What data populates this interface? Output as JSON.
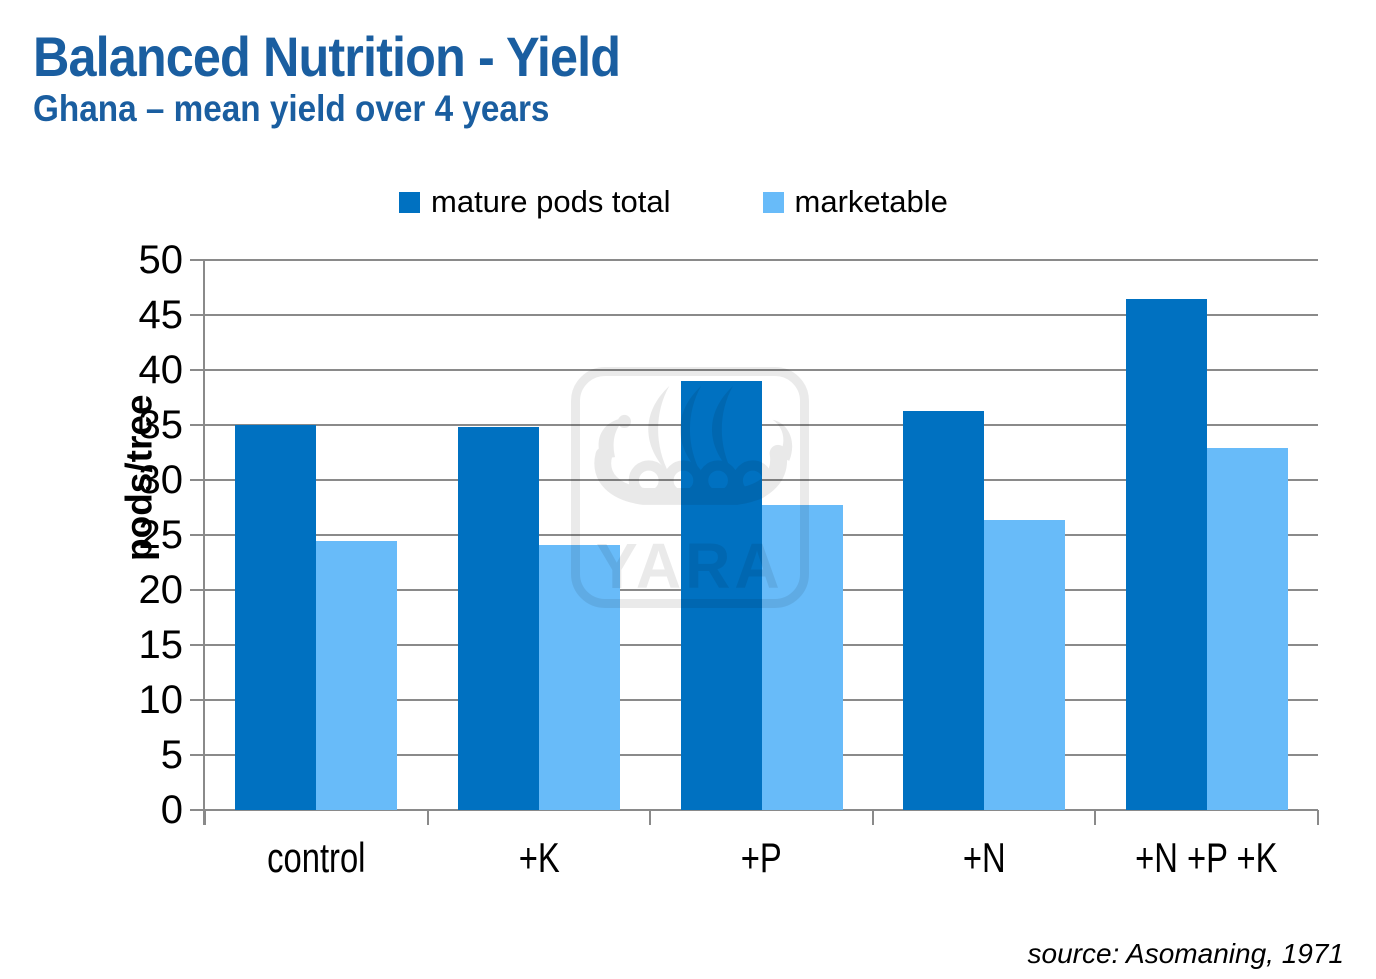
{
  "page": {
    "title": "Balanced Nutrition - Yield",
    "subtitle": "Ghana – mean yield over 4 years",
    "source": "source: Asomaning, 1971"
  },
  "colors": {
    "title_blue": "#1A5EA0",
    "series_dark_blue": "#0071C1",
    "series_light_blue": "#68BBF9",
    "grid_gray": "#8A8A8A"
  },
  "watermark": {
    "text": "YARA",
    "icon": "viking-ship-icon"
  },
  "chart_data": {
    "type": "bar",
    "title": "Balanced Nutrition - Yield",
    "subtitle": "Ghana – mean yield over 4 years",
    "categories": [
      "control",
      "+K",
      "+P",
      "+N",
      "+N +P +K"
    ],
    "series": [
      {
        "name": "mature pods total",
        "color": "#0071C1",
        "values": [
          35.0,
          34.8,
          39.0,
          36.3,
          46.5
        ]
      },
      {
        "name": "marketable",
        "color": "#68BBF9",
        "values": [
          24.5,
          24.1,
          27.7,
          26.4,
          32.9
        ]
      }
    ],
    "xlabel": "",
    "ylabel": "pods/tree",
    "ylim": [
      0,
      50
    ],
    "ytick_step": 5,
    "grid": true,
    "legend_position": "top",
    "source": "source: Asomaning, 1971"
  }
}
